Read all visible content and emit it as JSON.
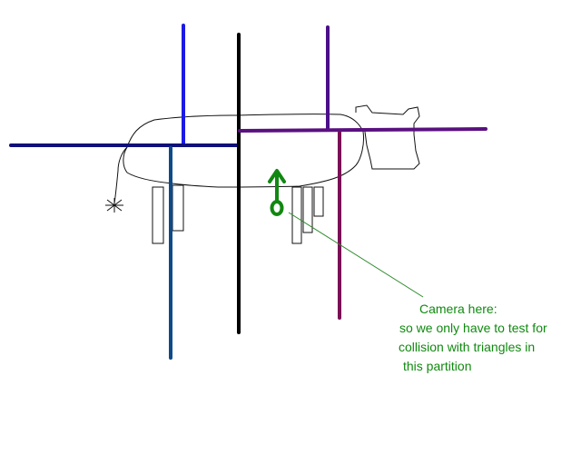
{
  "annotation": {
    "line1": "Camera here:",
    "line2": "so we only have to test for",
    "line3": "collision with triangles in",
    "line4": "this partition"
  },
  "colors": {
    "background": "#ffffff",
    "outline": "#111111",
    "annotation": "#0f8a0f",
    "camera": "#118811",
    "partition_blue": "#1a1ae6",
    "partition_navy": "#10107a",
    "partition_black": "#000000",
    "partition_indigo": "#4b0f8a",
    "partition_purple": "#5a1080",
    "partition_steel": "#0d4a8a",
    "partition_maroon": "#7a0f55",
    "pointer_line": "#2a8a2a"
  },
  "icons": [
    "camera-icon",
    "cow-sketch"
  ]
}
